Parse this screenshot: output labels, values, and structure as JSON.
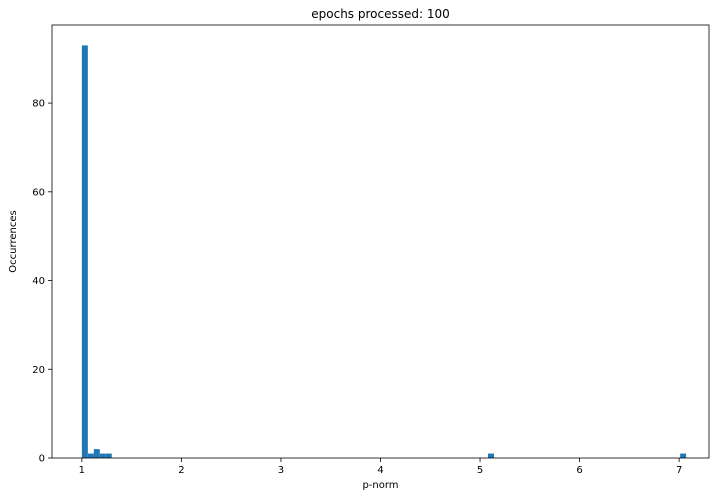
{
  "chart_data": {
    "type": "bar",
    "title": "epochs processed: 100",
    "xlabel": "p-norm",
    "ylabel": "Occurrences",
    "xlim": [
      0.7,
      7.3
    ],
    "ylim": [
      0,
      97.6
    ],
    "xticks": [
      1,
      2,
      3,
      4,
      5,
      6,
      7
    ],
    "yticks": [
      0,
      20,
      40,
      60,
      80
    ],
    "bin_width": 0.06,
    "grid": false,
    "bar_color": "#1f77b4",
    "bars": [
      {
        "x": 1.0,
        "value": 93
      },
      {
        "x": 1.06,
        "value": 1
      },
      {
        "x": 1.12,
        "value": 2
      },
      {
        "x": 1.18,
        "value": 1
      },
      {
        "x": 1.24,
        "value": 1
      },
      {
        "x": 5.08,
        "value": 1
      },
      {
        "x": 7.01,
        "value": 1
      }
    ]
  }
}
